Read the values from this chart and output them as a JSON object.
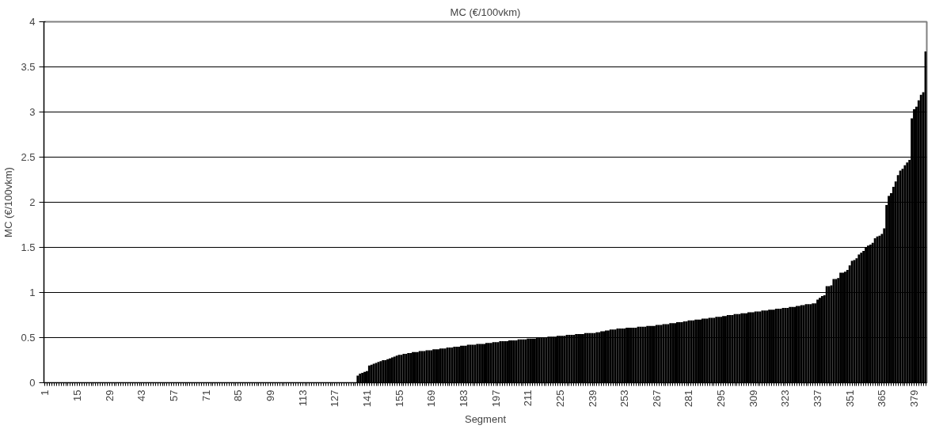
{
  "chart_data": {
    "type": "bar",
    "title": "MC (€/100vkm)",
    "xlabel": "Segment",
    "ylabel": "MC (€/100vkm)",
    "categories": [
      "1",
      null,
      null,
      null,
      null,
      null,
      null,
      null,
      null,
      null,
      null,
      null,
      null,
      null,
      "15",
      null,
      null,
      null,
      null,
      null,
      null,
      null,
      null,
      null,
      null,
      null,
      null,
      null,
      "29",
      null,
      null,
      null,
      null,
      null,
      null,
      null,
      null,
      null,
      null,
      null,
      null,
      null,
      "43",
      null,
      null,
      null,
      null,
      null,
      null,
      null,
      null,
      null,
      null,
      null,
      null,
      null,
      "57",
      null,
      null,
      null,
      null,
      null,
      null,
      null,
      null,
      null,
      null,
      null,
      null,
      null,
      "71",
      null,
      null,
      null,
      null,
      null,
      null,
      null,
      null,
      null,
      null,
      null,
      null,
      null,
      "85",
      null,
      null,
      null,
      null,
      null,
      null,
      null,
      null,
      null,
      null,
      null,
      null,
      null,
      "99",
      null,
      null,
      null,
      null,
      null,
      null,
      null,
      null,
      null,
      null,
      null,
      null,
      null,
      "113",
      null,
      null,
      null,
      null,
      null,
      null,
      null,
      null,
      null,
      null,
      null,
      null,
      null,
      "127",
      null,
      null,
      null,
      null,
      null,
      null,
      null,
      null,
      null,
      null,
      null,
      null,
      null,
      "141",
      null,
      null,
      null,
      null,
      null,
      null,
      null,
      null,
      null,
      null,
      null,
      null,
      null,
      "155",
      null,
      null,
      null,
      null,
      null,
      null,
      null,
      null,
      null,
      null,
      null,
      null,
      null,
      "169",
      null,
      null,
      null,
      null,
      null,
      null,
      null,
      null,
      null,
      null,
      null,
      null,
      null,
      "183",
      null,
      null,
      null,
      null,
      null,
      null,
      null,
      null,
      null,
      null,
      null,
      null,
      null,
      "197",
      null,
      null,
      null,
      null,
      null,
      null,
      null,
      null,
      null,
      null,
      null,
      null,
      null,
      "211",
      null,
      null,
      null,
      null,
      null,
      null,
      null,
      null,
      null,
      null,
      null,
      null,
      null,
      "225",
      null,
      null,
      null,
      null,
      null,
      null,
      null,
      null,
      null,
      null,
      null,
      null,
      null,
      "239",
      null,
      null,
      null,
      null,
      null,
      null,
      null,
      null,
      null,
      null,
      null,
      null,
      null,
      "253",
      null,
      null,
      null,
      null,
      null,
      null,
      null,
      null,
      null,
      null,
      null,
      null,
      null,
      "267",
      null,
      null,
      null,
      null,
      null,
      null,
      null,
      null,
      null,
      null,
      null,
      null,
      null,
      "281",
      null,
      null,
      null,
      null,
      null,
      null,
      null,
      null,
      null,
      null,
      null,
      null,
      null,
      "295",
      null,
      null,
      null,
      null,
      null,
      null,
      null,
      null,
      null,
      null,
      null,
      null,
      null,
      "309",
      null,
      null,
      null,
      null,
      null,
      null,
      null,
      null,
      null,
      null,
      null,
      null,
      null,
      "323",
      null,
      null,
      null,
      null,
      null,
      null,
      null,
      null,
      null,
      null,
      null,
      null,
      null,
      "337",
      null,
      null,
      null,
      null,
      null,
      null,
      null,
      null,
      null,
      null,
      null,
      null,
      null,
      "351",
      null,
      null,
      null,
      null,
      null,
      null,
      null,
      null,
      null,
      null,
      null,
      null,
      null,
      "365",
      null,
      null,
      null,
      null,
      null,
      null,
      null,
      null,
      null,
      null,
      null,
      null,
      null,
      "379",
      null,
      null,
      null,
      null,
      null
    ],
    "values": [
      0,
      0,
      0,
      0,
      0,
      0,
      0,
      0,
      0,
      0,
      0,
      0,
      0,
      0,
      0,
      0,
      0,
      0,
      0,
      0,
      0,
      0,
      0,
      0,
      0,
      0,
      0,
      0,
      0,
      0,
      0,
      0,
      0,
      0,
      0,
      0,
      0,
      0,
      0,
      0,
      0,
      0,
      0,
      0,
      0,
      0,
      0,
      0,
      0,
      0,
      0,
      0,
      0,
      0,
      0,
      0,
      0,
      0,
      0,
      0,
      0,
      0,
      0,
      0,
      0,
      0,
      0,
      0,
      0,
      0,
      0,
      0,
      0,
      0,
      0,
      0,
      0,
      0,
      0,
      0,
      0,
      0,
      0,
      0,
      0,
      0,
      0,
      0,
      0,
      0,
      0,
      0,
      0,
      0,
      0,
      0,
      0,
      0,
      0,
      0,
      0,
      0,
      0,
      0,
      0,
      0,
      0,
      0,
      0,
      0,
      0,
      0,
      0,
      0,
      0,
      0,
      0,
      0,
      0,
      0,
      0,
      0,
      0,
      0,
      0,
      0,
      0,
      0,
      0,
      0,
      0,
      0,
      0,
      0,
      0,
      0,
      0.08,
      0.1,
      0.11,
      0.12,
      0.13,
      0.19,
      0.2,
      0.21,
      0.22,
      0.23,
      0.24,
      0.25,
      0.25,
      0.26,
      0.27,
      0.28,
      0.29,
      0.3,
      0.31,
      0.31,
      0.32,
      0.32,
      0.33,
      0.33,
      0.34,
      0.34,
      0.34,
      0.35,
      0.35,
      0.35,
      0.36,
      0.36,
      0.36,
      0.37,
      0.37,
      0.37,
      0.38,
      0.38,
      0.38,
      0.39,
      0.39,
      0.39,
      0.4,
      0.4,
      0.4,
      0.41,
      0.41,
      0.41,
      0.42,
      0.42,
      0.42,
      0.42,
      0.43,
      0.43,
      0.43,
      0.43,
      0.44,
      0.44,
      0.44,
      0.45,
      0.45,
      0.45,
      0.46,
      0.46,
      0.46,
      0.46,
      0.47,
      0.47,
      0.47,
      0.47,
      0.48,
      0.48,
      0.48,
      0.48,
      0.49,
      0.49,
      0.49,
      0.49,
      0.5,
      0.5,
      0.5,
      0.5,
      0.5,
      0.51,
      0.51,
      0.51,
      0.51,
      0.52,
      0.52,
      0.52,
      0.52,
      0.53,
      0.53,
      0.53,
      0.53,
      0.54,
      0.54,
      0.54,
      0.54,
      0.55,
      0.55,
      0.55,
      0.55,
      0.55,
      0.56,
      0.56,
      0.57,
      0.57,
      0.58,
      0.58,
      0.59,
      0.59,
      0.59,
      0.6,
      0.6,
      0.6,
      0.6,
      0.61,
      0.61,
      0.61,
      0.61,
      0.61,
      0.62,
      0.62,
      0.62,
      0.62,
      0.63,
      0.63,
      0.63,
      0.63,
      0.64,
      0.64,
      0.64,
      0.65,
      0.65,
      0.65,
      0.66,
      0.66,
      0.66,
      0.67,
      0.67,
      0.67,
      0.68,
      0.68,
      0.69,
      0.69,
      0.69,
      0.7,
      0.7,
      0.7,
      0.71,
      0.71,
      0.71,
      0.72,
      0.72,
      0.72,
      0.73,
      0.73,
      0.73,
      0.74,
      0.74,
      0.75,
      0.75,
      0.75,
      0.76,
      0.76,
      0.76,
      0.77,
      0.77,
      0.77,
      0.78,
      0.78,
      0.78,
      0.79,
      0.79,
      0.79,
      0.8,
      0.8,
      0.8,
      0.81,
      0.81,
      0.81,
      0.82,
      0.82,
      0.82,
      0.83,
      0.83,
      0.83,
      0.84,
      0.84,
      0.84,
      0.85,
      0.85,
      0.86,
      0.86,
      0.87,
      0.87,
      0.87,
      0.88,
      0.88,
      0.92,
      0.94,
      0.96,
      0.97,
      1.07,
      1.07,
      1.08,
      1.15,
      1.15,
      1.16,
      1.22,
      1.22,
      1.23,
      1.25,
      1.3,
      1.35,
      1.36,
      1.38,
      1.42,
      1.44,
      1.46,
      1.5,
      1.52,
      1.53,
      1.55,
      1.6,
      1.62,
      1.63,
      1.65,
      1.71,
      1.97,
      2.07,
      2.1,
      2.17,
      2.23,
      2.3,
      2.35,
      2.37,
      2.41,
      2.44,
      2.47,
      2.93,
      3.03,
      3.06,
      3.13,
      3.19,
      3.22,
      3.67
    ],
    "color": "#000000",
    "ylim": [
      0,
      4
    ],
    "yticks": [
      0,
      0.5,
      1,
      1.5,
      2,
      2.5,
      3,
      3.5,
      4
    ],
    "grid": "y"
  }
}
